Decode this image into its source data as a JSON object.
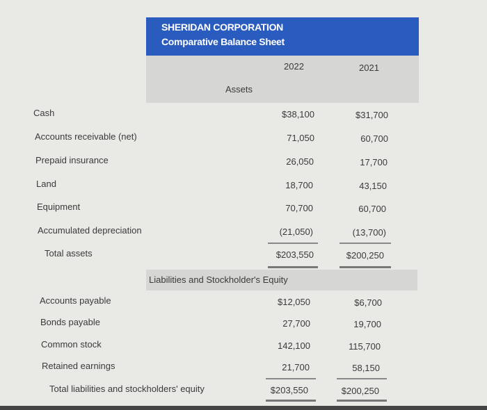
{
  "company": "SHERIDAN CORPORATION",
  "title": "Comparative Balance Sheet",
  "years": [
    "2022",
    "2021"
  ],
  "assets_heading": "Assets",
  "assets": [
    {
      "label": "Cash",
      "y2022": "$38,100",
      "y2021": "$31,700"
    },
    {
      "label": "Accounts receivable (net)",
      "y2022": "71,050",
      "y2021": "60,700"
    },
    {
      "label": "Prepaid insurance",
      "y2022": "26,050",
      "y2021": "17,700"
    },
    {
      "label": "Land",
      "y2022": "18,700",
      "y2021": "43,150"
    },
    {
      "label": "Equipment",
      "y2022": "70,700",
      "y2021": "60,700"
    },
    {
      "label": "Accumulated depreciation",
      "y2022": "(21,050)",
      "y2021": "(13,700)"
    }
  ],
  "total_assets": {
    "label": "Total assets",
    "y2022": "$203,550",
    "y2021": "$200,250"
  },
  "liabilities_heading": "Liabilities and Stockholder's Equity",
  "liabilities": [
    {
      "label": "Accounts payable",
      "y2022": "$12,050",
      "y2021": "$6,700"
    },
    {
      "label": "Bonds payable",
      "y2022": "27,700",
      "y2021": "19,700"
    },
    {
      "label": "Common stock",
      "y2022": "142,100",
      "y2021": "115,700"
    },
    {
      "label": "Retained earnings",
      "y2022": "21,700",
      "y2021": "58,150"
    }
  ],
  "total_liabilities": {
    "label": "Total liabilities and stockholders' equity",
    "y2022": "$203,550",
    "y2021": "$200,250"
  }
}
